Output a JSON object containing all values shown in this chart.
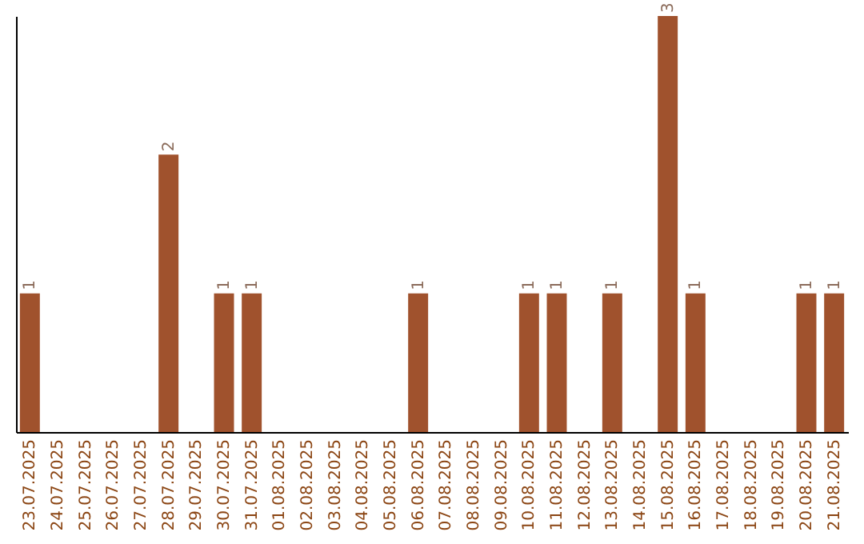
{
  "chart_data": {
    "type": "bar",
    "categories": [
      "23.07.2025",
      "24.07.2025",
      "25.07.2025",
      "26.07.2025",
      "27.07.2025",
      "28.07.2025",
      "29.07.2025",
      "30.07.2025",
      "31.07.2025",
      "01.08.2025",
      "02.08.2025",
      "03.08.2025",
      "04.08.2025",
      "05.08.2025",
      "06.08.2025",
      "07.08.2025",
      "08.08.2025",
      "09.08.2025",
      "10.08.2025",
      "11.08.2025",
      "12.08.2025",
      "13.08.2025",
      "14.08.2025",
      "15.08.2025",
      "16.08.2025",
      "17.08.2025",
      "18.08.2025",
      "19.08.2025",
      "20.08.2025",
      "21.08.2025"
    ],
    "values": [
      1,
      0,
      0,
      0,
      0,
      2,
      0,
      1,
      1,
      0,
      0,
      0,
      0,
      0,
      1,
      0,
      0,
      0,
      1,
      1,
      0,
      1,
      0,
      3,
      1,
      0,
      0,
      0,
      1,
      1
    ],
    "value_labels": [
      "1",
      null,
      null,
      null,
      null,
      "2",
      null,
      "1",
      "1",
      null,
      null,
      null,
      null,
      null,
      "1",
      null,
      null,
      null,
      "1",
      "1",
      null,
      "1",
      null,
      "3",
      "1",
      null,
      null,
      null,
      "1",
      "1"
    ],
    "color": "#a0522d",
    "tick_labels": "x"
  }
}
